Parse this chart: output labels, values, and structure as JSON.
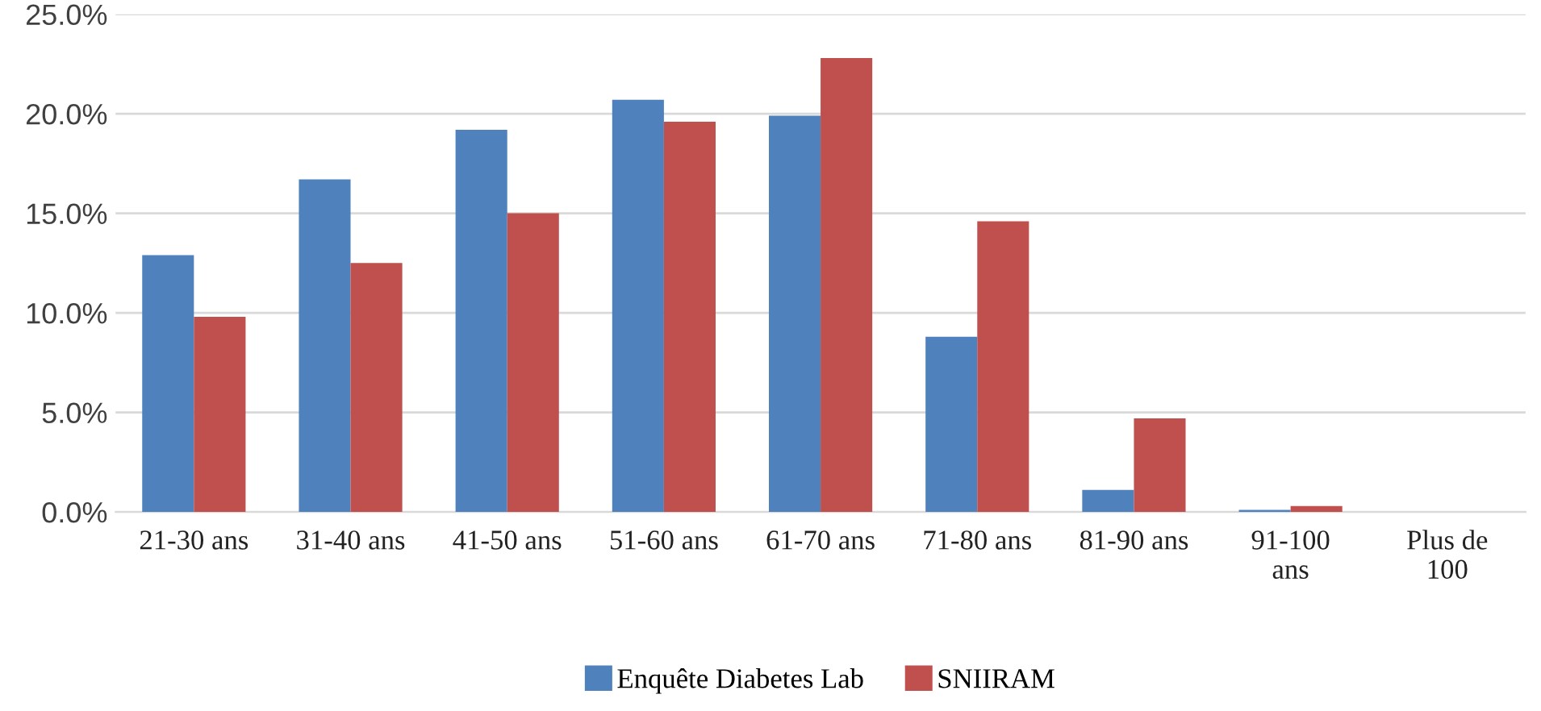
{
  "chart_data": {
    "type": "bar",
    "categories": [
      "21-30 ans",
      "31-40 ans",
      "41-50 ans",
      "51-60 ans",
      "61-70 ans",
      "71-80 ans",
      "81-90 ans",
      "91-100\nans",
      "Plus de\n100"
    ],
    "series": [
      {
        "name": "Enquête Diabetes Lab",
        "color": "#4f81bd",
        "values": [
          12.9,
          16.7,
          19.2,
          20.7,
          19.9,
          8.8,
          1.1,
          0.1,
          0
        ]
      },
      {
        "name": "SNIIRAM",
        "color": "#c0504d",
        "values": [
          9.8,
          12.5,
          15.0,
          19.6,
          22.8,
          14.6,
          4.7,
          0.3,
          0
        ]
      }
    ],
    "ylim": [
      0,
      25
    ],
    "yticks": [
      {
        "value": 0,
        "label": "0.0%"
      },
      {
        "value": 5,
        "label": "5.0%"
      },
      {
        "value": 10,
        "label": "10.0%"
      },
      {
        "value": 15,
        "label": "15.0%"
      },
      {
        "value": 20,
        "label": "20.0%"
      },
      {
        "value": 25,
        "label": "25.0%"
      }
    ],
    "grid": "y",
    "legend": "bottom"
  }
}
